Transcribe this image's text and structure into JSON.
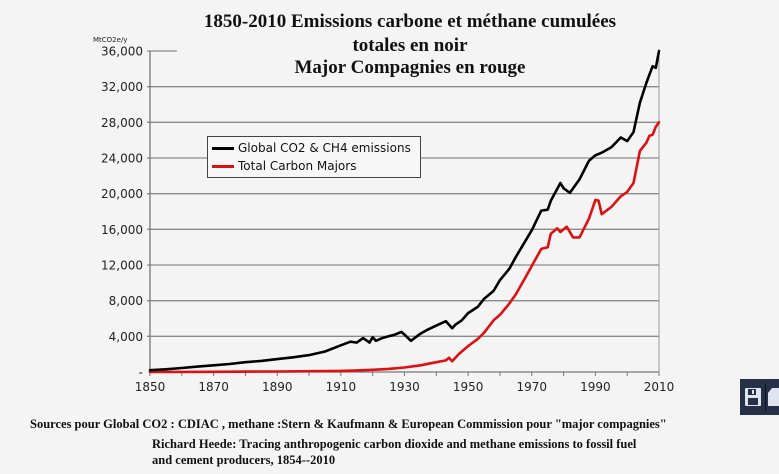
{
  "title": {
    "line1": "1850-2010 Emissions carbone et méthane cumulées",
    "line2": "totales en noir",
    "line3": "Major Compagnies en rouge"
  },
  "sources": {
    "line1": "Sources pour Global CO2 : CDIAC , methane :Stern & Kaufmann & European Commission pour \"major compagnies\"",
    "line2": "Richard Heede: Tracing anthropogenic carbon dioxide and methane emissions to fossil fuel",
    "line3": "and cement producers, 1854--2010"
  },
  "toolbar": {
    "buttons": [
      {
        "icon": "floppy-disk-icon"
      },
      {
        "icon": "document-icon"
      }
    ]
  },
  "chart_data": {
    "type": "line",
    "title": "1850-2010 Emissions carbone et méthane cumulées totales en noir / Major Compagnies en rouge",
    "xlabel": "",
    "ylabel": "MtCO2e/y",
    "xlim": [
      1850,
      2010
    ],
    "ylim": [
      0,
      36000
    ],
    "x_ticks": [
      "1850",
      "1870",
      "1890",
      "1910",
      "1930",
      "1950",
      "1970",
      "1990",
      "2010"
    ],
    "y_ticks": [
      "-",
      "4,000",
      "8,000",
      "12,000",
      "16,000",
      "20,000",
      "24,000",
      "28,000",
      "32,000",
      "36,000"
    ],
    "grid": true,
    "legend_position": "top-left",
    "colors": {
      "global": "#000000",
      "majors": "#dd1111"
    },
    "series": [
      {
        "name": "Global CO2 & CH4 emissions",
        "x": [
          1850,
          1855,
          1860,
          1865,
          1870,
          1875,
          1880,
          1885,
          1890,
          1895,
          1900,
          1905,
          1910,
          1913,
          1915,
          1917,
          1919,
          1920,
          1921,
          1923,
          1925,
          1927,
          1929,
          1930,
          1932,
          1935,
          1937,
          1940,
          1943,
          1945,
          1946,
          1948,
          1950,
          1953,
          1955,
          1958,
          1960,
          1963,
          1965,
          1968,
          1970,
          1973,
          1975,
          1976,
          1979,
          1980,
          1982,
          1985,
          1988,
          1990,
          1992,
          1995,
          1998,
          2000,
          2002,
          2004,
          2006,
          2008,
          2009,
          2010
        ],
        "values": [
          200,
          300,
          450,
          600,
          750,
          900,
          1100,
          1250,
          1450,
          1650,
          1900,
          2300,
          3000,
          3400,
          3300,
          3800,
          3300,
          3900,
          3500,
          3800,
          4000,
          4200,
          4500,
          4200,
          3500,
          4300,
          4700,
          5200,
          5700,
          4900,
          5300,
          5800,
          6600,
          7300,
          8200,
          9100,
          10300,
          11600,
          12900,
          14700,
          15900,
          18100,
          18200,
          19200,
          21200,
          20600,
          20100,
          21600,
          23700,
          24300,
          24600,
          25200,
          26300,
          25900,
          26900,
          30200,
          32400,
          34300,
          34100,
          36000
        ]
      },
      {
        "name": "Total Carbon Majors",
        "x": [
          1850,
          1870,
          1890,
          1910,
          1915,
          1920,
          1925,
          1930,
          1935,
          1940,
          1943,
          1944,
          1945,
          1947,
          1950,
          1953,
          1955,
          1958,
          1960,
          1963,
          1965,
          1968,
          1970,
          1973,
          1975,
          1976,
          1978,
          1979,
          1981,
          1983,
          1985,
          1988,
          1990,
          1991,
          1992,
          1995,
          1998,
          2000,
          2002,
          2004,
          2006,
          2007,
          2008,
          2009,
          2010
        ],
        "values": [
          0,
          20,
          60,
          120,
          180,
          250,
          350,
          500,
          750,
          1100,
          1300,
          1600,
          1200,
          2000,
          2900,
          3700,
          4400,
          5800,
          6400,
          7700,
          8700,
          10600,
          11900,
          13800,
          14000,
          15500,
          16100,
          15700,
          16300,
          15100,
          15100,
          17200,
          19300,
          19200,
          17700,
          18500,
          19700,
          20200,
          21200,
          24800,
          25700,
          26500,
          26600,
          27500,
          28000
        ]
      }
    ]
  }
}
